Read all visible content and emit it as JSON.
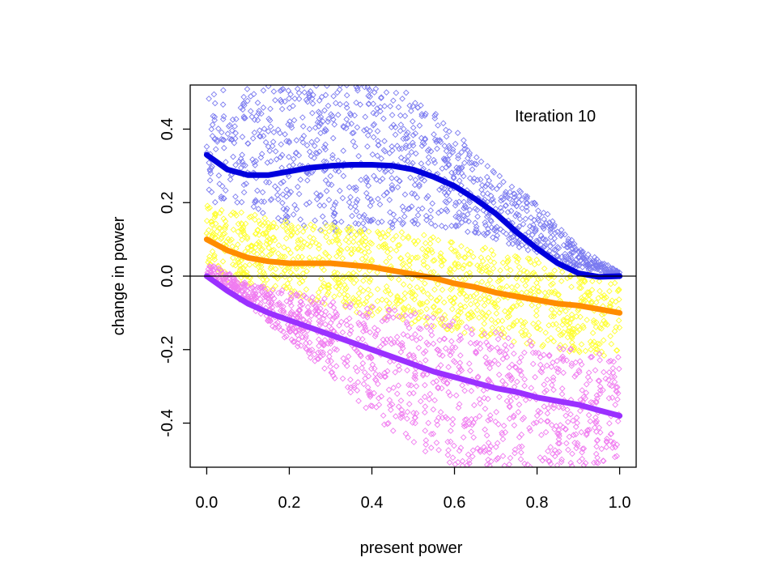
{
  "chart_data": {
    "type": "scatter",
    "title": "",
    "xlabel": "present power",
    "ylabel": "change in power",
    "xlim": [
      -0.04,
      1.04
    ],
    "ylim": [
      -0.52,
      0.52
    ],
    "x_ticks": [
      0.0,
      0.2,
      0.4,
      0.6,
      0.8,
      1.0
    ],
    "x_tick_labels": [
      "0.0",
      "0.2",
      "0.4",
      "0.6",
      "0.8",
      "1.0"
    ],
    "y_ticks": [
      -0.4,
      -0.2,
      0.0,
      0.2,
      0.4
    ],
    "y_tick_labels": [
      "-0.4",
      "-0.2",
      "0.0",
      "0.2",
      "0.4"
    ],
    "grid": false,
    "legend": "none",
    "reference_line": {
      "y": 0.0,
      "color": "#000000"
    },
    "annotation": "Iteration 10",
    "scatter_groups": [
      {
        "color": "#7b7bf0",
        "marker": "open-diamond",
        "band_x": [
          0.0,
          0.1,
          0.2,
          0.3,
          0.4,
          0.5,
          0.6,
          0.7,
          0.8,
          0.9,
          1.0
        ],
        "band_low": [
          0.2,
          0.18,
          0.14,
          0.12,
          0.12,
          0.14,
          0.13,
          0.1,
          0.06,
          0.02,
          0.0
        ],
        "band_high": [
          0.5,
          0.52,
          0.52,
          0.52,
          0.52,
          0.5,
          0.4,
          0.28,
          0.2,
          0.08,
          0.01
        ]
      },
      {
        "color": "#ffff33",
        "marker": "open-diamond",
        "band_x": [
          0.0,
          0.1,
          0.2,
          0.3,
          0.4,
          0.5,
          0.6,
          0.7,
          0.8,
          0.9,
          1.0
        ],
        "band_low": [
          0.0,
          -0.03,
          -0.06,
          -0.08,
          -0.11,
          -0.13,
          -0.15,
          -0.17,
          -0.19,
          -0.21,
          -0.22
        ],
        "band_high": [
          0.2,
          0.17,
          0.15,
          0.14,
          0.13,
          0.12,
          0.1,
          0.07,
          0.05,
          0.01,
          -0.01
        ]
      },
      {
        "color": "#f07cf0",
        "marker": "open-diamond",
        "band_x": [
          0.0,
          0.1,
          0.2,
          0.3,
          0.4,
          0.5,
          0.6,
          0.7,
          0.8,
          0.9,
          1.0
        ],
        "band_low": [
          0.0,
          -0.08,
          -0.18,
          -0.27,
          -0.38,
          -0.46,
          -0.52,
          -0.52,
          -0.52,
          -0.52,
          -0.52
        ],
        "band_high": [
          0.04,
          -0.02,
          -0.04,
          -0.06,
          -0.08,
          -0.1,
          -0.12,
          -0.15,
          -0.18,
          -0.2,
          -0.22
        ]
      }
    ],
    "series": [
      {
        "color": "#0000dd",
        "x": [
          0.0,
          0.05,
          0.1,
          0.15,
          0.2,
          0.25,
          0.3,
          0.35,
          0.4,
          0.45,
          0.5,
          0.55,
          0.6,
          0.65,
          0.7,
          0.75,
          0.8,
          0.85,
          0.9,
          0.95,
          1.0
        ],
        "y": [
          0.33,
          0.29,
          0.275,
          0.275,
          0.285,
          0.295,
          0.3,
          0.303,
          0.303,
          0.3,
          0.29,
          0.27,
          0.245,
          0.21,
          0.17,
          0.12,
          0.075,
          0.035,
          0.008,
          -0.002,
          0.0
        ]
      },
      {
        "color": "#ff8c00",
        "x": [
          0.0,
          0.05,
          0.1,
          0.15,
          0.2,
          0.25,
          0.3,
          0.35,
          0.4,
          0.45,
          0.5,
          0.55,
          0.6,
          0.65,
          0.7,
          0.75,
          0.8,
          0.85,
          0.9,
          0.95,
          1.0
        ],
        "y": [
          0.1,
          0.07,
          0.05,
          0.04,
          0.035,
          0.035,
          0.035,
          0.03,
          0.025,
          0.015,
          0.005,
          -0.005,
          -0.02,
          -0.03,
          -0.045,
          -0.055,
          -0.065,
          -0.075,
          -0.08,
          -0.09,
          -0.1
        ]
      },
      {
        "color": "#9b30ff",
        "x": [
          0.0,
          0.05,
          0.1,
          0.15,
          0.2,
          0.25,
          0.3,
          0.35,
          0.4,
          0.45,
          0.5,
          0.55,
          0.6,
          0.65,
          0.7,
          0.75,
          0.8,
          0.85,
          0.9,
          0.95,
          1.0
        ],
        "y": [
          0.0,
          -0.04,
          -0.075,
          -0.1,
          -0.12,
          -0.14,
          -0.16,
          -0.18,
          -0.2,
          -0.22,
          -0.24,
          -0.26,
          -0.275,
          -0.29,
          -0.305,
          -0.315,
          -0.33,
          -0.34,
          -0.35,
          -0.365,
          -0.38
        ]
      }
    ]
  }
}
